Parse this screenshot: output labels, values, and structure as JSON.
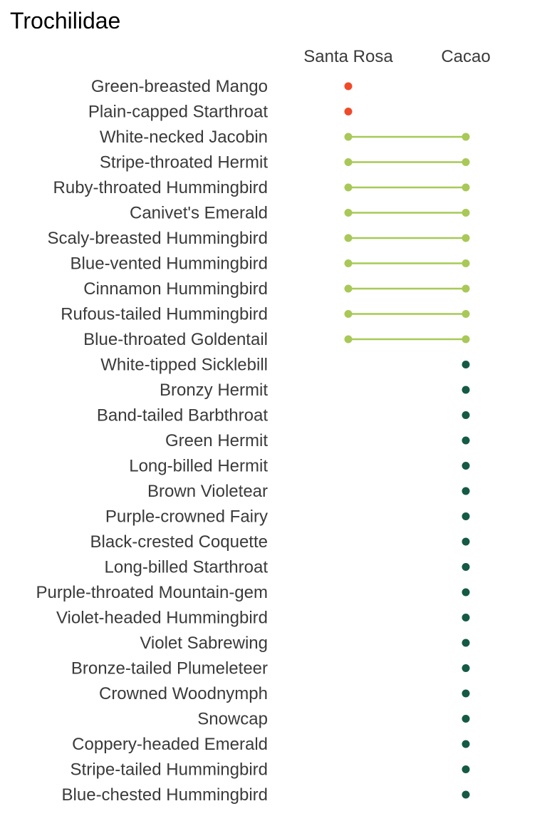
{
  "chart_data": {
    "type": "dot-plot",
    "title": "Trochilidae",
    "columns": [
      "Santa Rosa",
      "Cacao"
    ],
    "colors": {
      "santa_rosa_only": "#f04a28",
      "both": "#a8c957",
      "cacao_only": "#145a44"
    },
    "grid": false,
    "species": [
      {
        "name": "Green-breasted Mango",
        "present": [
          "Santa Rosa"
        ]
      },
      {
        "name": "Plain-capped Starthroat",
        "present": [
          "Santa Rosa"
        ]
      },
      {
        "name": "White-necked Jacobin",
        "present": [
          "Santa Rosa",
          "Cacao"
        ]
      },
      {
        "name": "Stripe-throated Hermit",
        "present": [
          "Santa Rosa",
          "Cacao"
        ]
      },
      {
        "name": "Ruby-throated Hummingbird",
        "present": [
          "Santa Rosa",
          "Cacao"
        ]
      },
      {
        "name": "Canivet's Emerald",
        "present": [
          "Santa Rosa",
          "Cacao"
        ]
      },
      {
        "name": "Scaly-breasted Hummingbird",
        "present": [
          "Santa Rosa",
          "Cacao"
        ]
      },
      {
        "name": "Blue-vented Hummingbird",
        "present": [
          "Santa Rosa",
          "Cacao"
        ]
      },
      {
        "name": "Cinnamon Hummingbird",
        "present": [
          "Santa Rosa",
          "Cacao"
        ]
      },
      {
        "name": "Rufous-tailed Hummingbird",
        "present": [
          "Santa Rosa",
          "Cacao"
        ]
      },
      {
        "name": "Blue-throated Goldentail",
        "present": [
          "Santa Rosa",
          "Cacao"
        ]
      },
      {
        "name": "White-tipped Sicklebill",
        "present": [
          "Cacao"
        ]
      },
      {
        "name": "Bronzy Hermit",
        "present": [
          "Cacao"
        ]
      },
      {
        "name": "Band-tailed Barbthroat",
        "present": [
          "Cacao"
        ]
      },
      {
        "name": "Green Hermit",
        "present": [
          "Cacao"
        ]
      },
      {
        "name": "Long-billed Hermit",
        "present": [
          "Cacao"
        ]
      },
      {
        "name": "Brown Violetear",
        "present": [
          "Cacao"
        ]
      },
      {
        "name": "Purple-crowned Fairy",
        "present": [
          "Cacao"
        ]
      },
      {
        "name": "Black-crested Coquette",
        "present": [
          "Cacao"
        ]
      },
      {
        "name": "Long-billed Starthroat",
        "present": [
          "Cacao"
        ]
      },
      {
        "name": "Purple-throated Mountain-gem",
        "present": [
          "Cacao"
        ]
      },
      {
        "name": "Violet-headed Hummingbird",
        "present": [
          "Cacao"
        ]
      },
      {
        "name": "Violet Sabrewing",
        "present": [
          "Cacao"
        ]
      },
      {
        "name": "Bronze-tailed Plumeleteer",
        "present": [
          "Cacao"
        ]
      },
      {
        "name": "Crowned Woodnymph",
        "present": [
          "Cacao"
        ]
      },
      {
        "name": "Snowcap",
        "present": [
          "Cacao"
        ]
      },
      {
        "name": "Coppery-headed Emerald",
        "present": [
          "Cacao"
        ]
      },
      {
        "name": "Stripe-tailed Hummingbird",
        "present": [
          "Cacao"
        ]
      },
      {
        "name": "Blue-chested Hummingbird",
        "present": [
          "Cacao"
        ]
      }
    ]
  }
}
